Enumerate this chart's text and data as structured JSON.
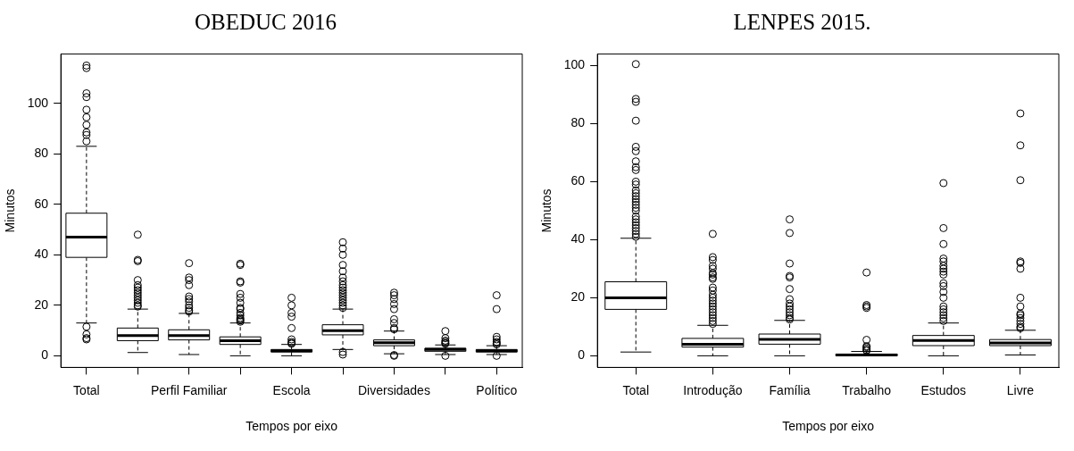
{
  "chart_data": [
    {
      "type": "box",
      "title": "OBEDUC 2016",
      "xlabel": "Tempos por eixo",
      "ylabel": "Minutos",
      "marker": "circle",
      "categories": [
        "Total",
        null,
        "Perfil Familiar",
        null,
        "Escola",
        null,
        "Diversidades",
        null,
        "Político"
      ],
      "ylim": [
        -4.6,
        119.6
      ],
      "yticks": [
        0,
        20,
        40,
        60,
        80,
        100
      ],
      "boxes": [
        {
          "low": 13,
          "q1": 39,
          "median": 47,
          "q3": 56.5,
          "high": 83,
          "outliers": [
            115,
            114,
            104,
            102.5,
            97.5,
            94.5,
            91.5,
            88.5,
            87.5,
            85,
            11.5,
            8.5,
            7,
            6.5
          ]
        },
        {
          "low": 1.3,
          "q1": 6,
          "median": 8,
          "q3": 11,
          "high": 18.5,
          "outliers": [
            48,
            38,
            37.5,
            30,
            28,
            27,
            26,
            25,
            24,
            23,
            22,
            21,
            20,
            19.5
          ]
        },
        {
          "low": 0.5,
          "q1": 6.3,
          "median": 8,
          "q3": 10.3,
          "high": 16.8,
          "outliers": [
            36.7,
            31,
            30,
            28,
            23.5,
            22.5,
            21.5,
            20,
            19,
            18,
            17.5
          ]
        },
        {
          "low": 0,
          "q1": 4.5,
          "median": 6,
          "q3": 7.5,
          "high": 13,
          "outliers": [
            36.5,
            36,
            29.5,
            29,
            24.5,
            23,
            21,
            19,
            18.5,
            17,
            16,
            15,
            14.5,
            14,
            13.5
          ]
        },
        {
          "low": 0,
          "q1": 1.5,
          "median": 2,
          "q3": 2.5,
          "high": 4.5,
          "outliers": [
            23,
            20,
            17,
            15.5,
            11,
            6.5,
            5.5,
            5,
            4.8
          ]
        },
        {
          "low": 2.5,
          "q1": 8.3,
          "median": 10,
          "q3": 12.3,
          "high": 18.5,
          "outliers": [
            45,
            42.5,
            40,
            36,
            33.5,
            31,
            29.5,
            28,
            27,
            26,
            25,
            24,
            23,
            22,
            21,
            20,
            19,
            1.5,
            0.5
          ]
        },
        {
          "low": 0.8,
          "q1": 4,
          "median": 5.2,
          "q3": 6.3,
          "high": 9.8,
          "outliers": [
            25,
            24,
            22.5,
            20.5,
            18.5,
            14.5,
            13,
            11,
            10.5,
            0.3,
            0
          ]
        },
        {
          "low": 0.5,
          "q1": 1.8,
          "median": 2.5,
          "q3": 3,
          "high": 4.3,
          "outliers": [
            9.8,
            7,
            6,
            5.5,
            5,
            4.8,
            0
          ]
        },
        {
          "low": 0.5,
          "q1": 1.5,
          "median": 2,
          "q3": 2.5,
          "high": 4,
          "outliers": [
            24,
            18.5,
            7.5,
            6.5,
            5.5,
            5,
            4.5,
            0
          ]
        }
      ]
    },
    {
      "type": "box",
      "title": "LENPES 2015.",
      "xlabel": "Tempos por eixo",
      "ylabel": "Minutos",
      "marker": "circle",
      "categories": [
        "Total",
        "Introdução",
        "Família",
        "Trabalho",
        "Estudos",
        "Livre"
      ],
      "ylim": [
        -4,
        104
      ],
      "yticks": [
        0,
        20,
        40,
        60,
        80,
        100
      ],
      "boxes": [
        {
          "low": 1.3,
          "q1": 16,
          "median": 20,
          "q3": 25.5,
          "high": 40.5,
          "outliers": [
            100.5,
            88.5,
            87.5,
            81,
            72,
            70.5,
            67,
            65,
            64,
            60,
            59,
            57,
            56,
            55,
            54,
            53,
            52,
            51,
            50,
            48,
            47,
            46,
            45,
            44,
            43,
            42,
            41
          ]
        },
        {
          "low": 0,
          "q1": 3,
          "median": 4,
          "q3": 6,
          "high": 10.5,
          "outliers": [
            42,
            34,
            33,
            31,
            30,
            28.5,
            28,
            27,
            26.5,
            23.5,
            22.5,
            21,
            20,
            19,
            18,
            17,
            16,
            15,
            14,
            13,
            12,
            11
          ]
        },
        {
          "low": 0,
          "q1": 4,
          "median": 5.7,
          "q3": 7.5,
          "high": 12.2,
          "outliers": [
            47,
            42.3,
            31.8,
            27.5,
            27,
            23,
            19.5,
            18,
            17,
            16,
            15,
            14,
            13,
            12.5
          ]
        },
        {
          "low": 0,
          "q1": 0,
          "median": 0.3,
          "q3": 0.6,
          "high": 1.5,
          "outliers": [
            28.7,
            17.5,
            17,
            16.5,
            5.5,
            3.3,
            3,
            2.5,
            2,
            1.8
          ]
        },
        {
          "low": 0,
          "q1": 3.5,
          "median": 5.3,
          "q3": 7,
          "high": 11.3,
          "outliers": [
            59.5,
            44,
            38.5,
            33.5,
            32.5,
            31,
            30,
            29,
            28,
            25,
            24,
            22,
            20,
            17,
            16,
            15,
            14,
            13,
            12
          ]
        },
        {
          "low": 0.3,
          "q1": 3.5,
          "median": 4.4,
          "q3": 5.6,
          "high": 8.8,
          "outliers": [
            83.5,
            72.5,
            60.5,
            32.5,
            32,
            30,
            20,
            17,
            14.5,
            14,
            13,
            12,
            11,
            10,
            9.5
          ]
        }
      ]
    }
  ]
}
